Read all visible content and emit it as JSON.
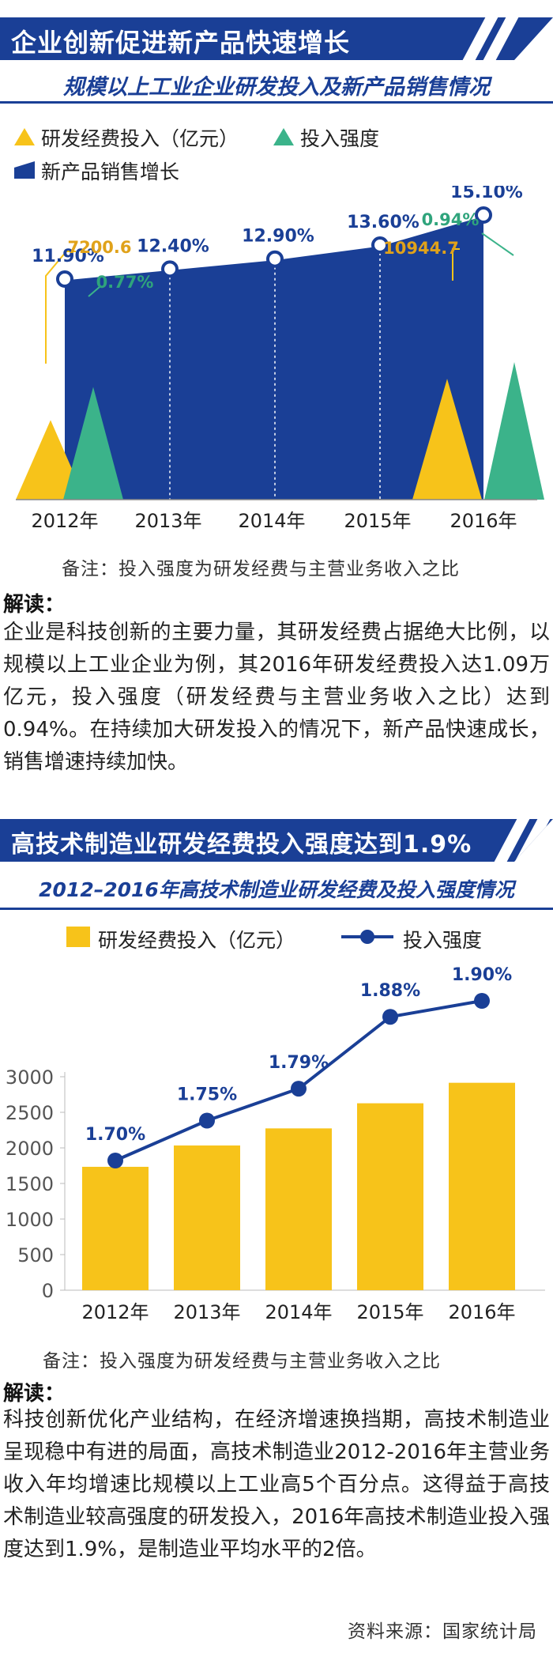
{
  "section1": {
    "banner": "企业创新促进新产品快速增长",
    "subtitle": "规模以上工业企业研发投入及新产品销售情况",
    "legend": {
      "rd": "研发经费投入（亿元）",
      "intensity": "投入强度",
      "growth": "新产品销售增长"
    },
    "note": "备注：投入强度为研发经费与主营业务收入之比",
    "analysis_title": "解读：",
    "analysis": "企业是科技创新的主要力量，其研发经费占据绝大比例，以规模以上工业企业为例，其2016年研发经费投入达1.09万亿元，投入强度（研发经费与主营业务收入之比）达到0.94%。在持续加大研发投入的情况下，新产品快速成长，销售增速持续加快。"
  },
  "section2": {
    "banner": "高技术制造业研发经费投入强度达到1.9%",
    "subtitle": "2012–2016年高技术制造业研发经费及投入强度情况",
    "legend": {
      "rd": "研发经费投入（亿元）",
      "intensity": "投入强度"
    },
    "note": "备注：投入强度为研发经费与主营业务收入之比",
    "analysis_title": "解读：",
    "analysis": "科技创新优化产业结构，在经济增速换挡期，高技术制造业呈现稳中有进的局面，高技术制造业2012-2016年主营业务收入年均增速比规模以上工业高5个百分点。这得益于高技术制造业较高强度的研发投入，2016年高技术制造业投入强度达到1.9%，是制造业平均水平的2倍。",
    "source": "资料来源：国家统计局"
  },
  "colors": {
    "navy": "#1a3f96",
    "yellow": "#f7c31a",
    "green": "#3bb38a",
    "growth_label": "#1a3f96",
    "rd_label": "#e0a21a",
    "green_label": "#2fa47c"
  },
  "chart_data": [
    {
      "type": "area",
      "title": "规模以上工业企业研发投入及新产品销售情况",
      "categories": [
        "2012年",
        "2013年",
        "2014年",
        "2015年",
        "2016年"
      ],
      "series": [
        {
          "name": "新产品销售增长",
          "values": [
            11.9,
            12.4,
            12.9,
            13.6,
            15.1
          ],
          "labels": [
            "11.90%",
            "12.40%",
            "12.90%",
            "13.60%",
            "15.10%"
          ]
        },
        {
          "name": "研发经费投入（亿元）",
          "values": [
            7200.6,
            null,
            null,
            null,
            10944.7
          ],
          "labels": [
            "7200.6",
            "",
            "",
            "",
            "10944.7"
          ]
        },
        {
          "name": "投入强度",
          "values": [
            0.77,
            null,
            null,
            null,
            0.94
          ],
          "labels": [
            "0.77%",
            "",
            "",
            "",
            "0.94%"
          ]
        }
      ],
      "legend": "top-left",
      "grid": false
    },
    {
      "type": "bar",
      "title": "2012–2016年高技术制造业研发经费及投入强度情况",
      "categories": [
        "2012年",
        "2013年",
        "2014年",
        "2015年",
        "2016年"
      ],
      "series": [
        {
          "name": "研发经费投入（亿元）",
          "values": [
            1734,
            2034,
            2274,
            2627,
            2915
          ]
        },
        {
          "name": "投入强度",
          "values": [
            1.7,
            1.75,
            1.79,
            1.88,
            1.9
          ],
          "labels": [
            "1.70%",
            "1.75%",
            "1.79%",
            "1.88%",
            "1.90%"
          ]
        }
      ],
      "yticks": [
        "0",
        "500",
        "1000",
        "1500",
        "2000",
        "2500",
        "3000"
      ],
      "ylim": [
        0,
        3000
      ],
      "legend": "top",
      "grid": false
    }
  ]
}
